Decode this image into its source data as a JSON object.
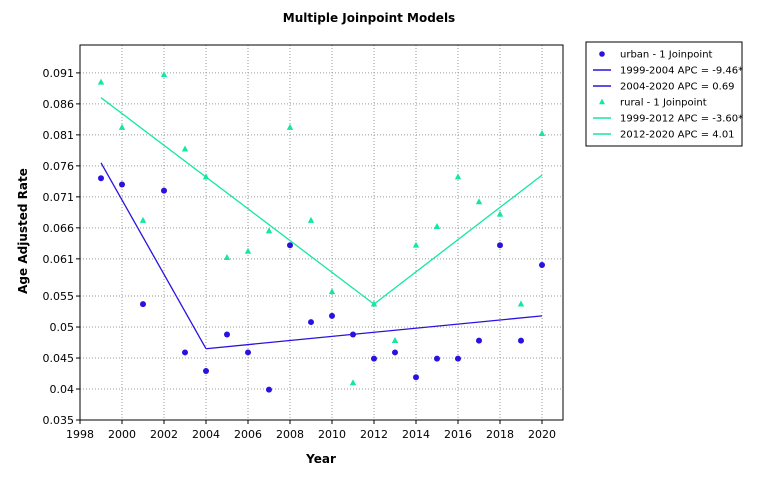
{
  "chart_data": {
    "type": "scatter",
    "title": "Multiple Joinpoint Models",
    "xlabel": "Year",
    "ylabel": "Age Adjusted Rate",
    "xlim": [
      1998,
      2021
    ],
    "ylim": [
      0.035,
      0.0955
    ],
    "xticks": [
      1998,
      2000,
      2002,
      2004,
      2006,
      2008,
      2010,
      2012,
      2014,
      2016,
      2018,
      2020
    ],
    "xtick_labels": [
      "1998",
      "2000",
      "2002",
      "2004",
      "2006",
      "2008",
      "2010",
      "2012",
      "2014",
      "2016",
      "2018",
      "2020"
    ],
    "yticks": [
      0.035,
      0.04,
      0.045,
      0.05,
      0.055,
      0.061,
      0.066,
      0.071,
      0.076,
      0.081,
      0.086,
      0.091
    ],
    "ytick_labels": [
      "0.035",
      "0.04",
      "0.045",
      "0.05",
      "0.055",
      "0.061",
      "0.066",
      "0.071",
      "0.076",
      "0.081",
      "0.086",
      "0.091"
    ],
    "grid": true,
    "legend_position": "right",
    "series": [
      {
        "name": "urban - 1 Joinpoint",
        "kind": "points",
        "marker": "circle",
        "color": "#2a12e0",
        "x": [
          1999,
          2000,
          2001,
          2002,
          2003,
          2004,
          2005,
          2006,
          2007,
          2008,
          2009,
          2010,
          2011,
          2012,
          2013,
          2014,
          2015,
          2016,
          2017,
          2018,
          2019,
          2020
        ],
        "y": [
          0.074,
          0.073,
          0.0537,
          0.072,
          0.0459,
          0.0429,
          0.0488,
          0.0459,
          0.0399,
          0.0632,
          0.0508,
          0.0518,
          0.0488,
          0.0449,
          0.0459,
          0.0419,
          0.0449,
          0.0449,
          0.0478,
          0.0632,
          0.0478,
          0.06
        ]
      },
      {
        "name": "1999-2004 APC  =  -9.46*",
        "kind": "line",
        "color": "#2a12e0",
        "x": [
          1999,
          2004
        ],
        "y": [
          0.0765,
          0.0465
        ]
      },
      {
        "name": "2004-2020 APC  =  0.69",
        "kind": "line",
        "color": "#2a12e0",
        "x": [
          2004,
          2020
        ],
        "y": [
          0.0465,
          0.0518
        ]
      },
      {
        "name": "rural - 1 Joinpoint",
        "kind": "points",
        "marker": "triangle",
        "color": "#12e8a0",
        "x": [
          1999,
          2000,
          2001,
          2002,
          2003,
          2004,
          2005,
          2006,
          2007,
          2008,
          2009,
          2010,
          2011,
          2012,
          2013,
          2014,
          2015,
          2016,
          2017,
          2018,
          2019,
          2020
        ],
        "y": [
          0.0895,
          0.0822,
          0.0672,
          0.0907,
          0.0787,
          0.0742,
          0.0612,
          0.0622,
          0.0655,
          0.0822,
          0.0672,
          0.0557,
          0.041,
          0.0537,
          0.0478,
          0.0632,
          0.0662,
          0.0742,
          0.0702,
          0.0682,
          0.0537,
          0.0812
        ]
      },
      {
        "name": "1999-2012 APC  =  -3.60*",
        "kind": "line",
        "color": "#12e8a0",
        "x": [
          1999,
          2012
        ],
        "y": [
          0.087,
          0.0537
        ]
      },
      {
        "name": "2012-2020 APC  =  4.01",
        "kind": "line",
        "color": "#12e8a0",
        "x": [
          2012,
          2020
        ],
        "y": [
          0.0537,
          0.0745
        ]
      }
    ]
  }
}
